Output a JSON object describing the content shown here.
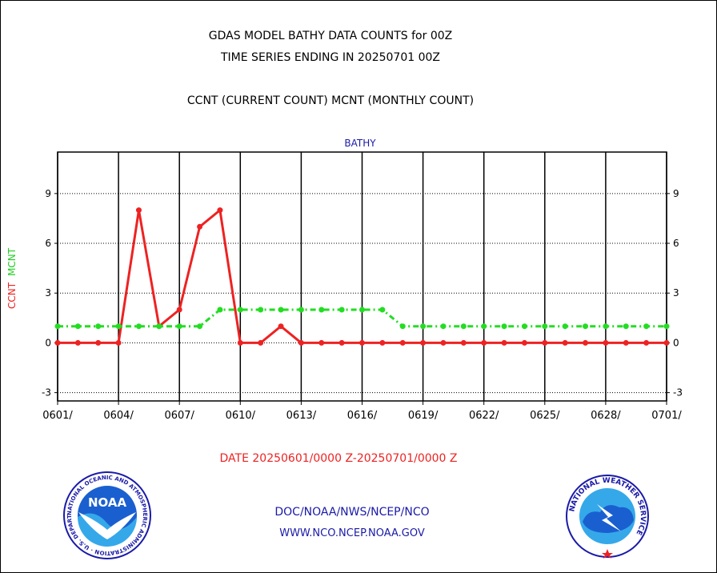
{
  "header": {
    "title_line1": "GDAS MODEL BATHY DATA COUNTS for 00Z",
    "title_line2": "TIME SERIES ENDING IN 20250701 00Z",
    "subtitle": "CCNT (CURRENT COUNT) MCNT (MONTHLY COUNT)"
  },
  "footer": {
    "date_range": "DATE 20250601/0000 Z-20250701/0000 Z",
    "credit_line1": "DOC/NOAA/NWS/NCEP/NCO",
    "credit_line2": "WWW.NCO.NCEP.NOAA.GOV"
  },
  "logos": {
    "noaa_text": "NOAA",
    "noaa_ring": "NATIONAL OCEANIC AND ATMOSPHERIC ADMINISTRATION · U.S. DEPARTMENT OF COMMERCE",
    "nws_ring": "NATIONAL WEATHER SERVICE"
  },
  "chart_data": {
    "type": "line",
    "panel_title": "BATHY",
    "ylabel": [
      "CCNT",
      "MCNT"
    ],
    "ylim": [
      -3.5,
      11.5
    ],
    "yticks": [
      -3,
      0,
      3,
      6,
      9
    ],
    "ytick_labels": [
      "-3",
      "0",
      "3",
      "6",
      "9"
    ],
    "xlim": [
      0,
      30
    ],
    "xticks": [
      0,
      3,
      6,
      9,
      12,
      15,
      18,
      21,
      24,
      27,
      30
    ],
    "xtick_labels": [
      "0601/",
      "0604/",
      "0607/",
      "0610/",
      "0613/",
      "0616/",
      "0619/",
      "0622/",
      "0625/",
      "0628/",
      "0701/"
    ],
    "grid": true,
    "series": [
      {
        "name": "CCNT",
        "color": "#ee2222",
        "style": "solid",
        "x": [
          0,
          1,
          2,
          3,
          4,
          5,
          6,
          7,
          8,
          9,
          10,
          11,
          12,
          13,
          14,
          15,
          16,
          17,
          18,
          19,
          20,
          21,
          22,
          23,
          24,
          25,
          26,
          27,
          28,
          29,
          30
        ],
        "values": [
          0,
          0,
          0,
          0,
          8,
          1,
          2,
          7,
          8,
          0,
          0,
          1,
          0,
          0,
          0,
          0,
          0,
          0,
          0,
          0,
          0,
          0,
          0,
          0,
          0,
          0,
          0,
          0,
          0,
          0,
          0
        ]
      },
      {
        "name": "MCNT",
        "color": "#22dd22",
        "style": "dashdot",
        "x": [
          0,
          1,
          2,
          3,
          4,
          5,
          6,
          7,
          8,
          9,
          10,
          11,
          12,
          13,
          14,
          15,
          16,
          17,
          18,
          19,
          20,
          21,
          22,
          23,
          24,
          25,
          26,
          27,
          28,
          29,
          30
        ],
        "values": [
          1,
          1,
          1,
          1,
          1,
          1,
          1,
          1,
          2,
          2,
          2,
          2,
          2,
          2,
          2,
          2,
          2,
          1,
          1,
          1,
          1,
          1,
          1,
          1,
          1,
          1,
          1,
          1,
          1,
          1,
          1
        ]
      }
    ]
  }
}
